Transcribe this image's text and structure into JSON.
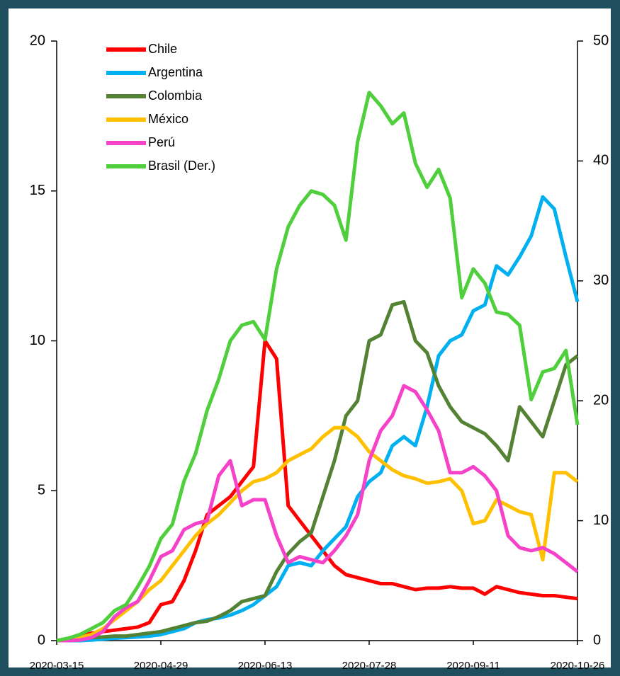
{
  "chart_data": {
    "type": "line",
    "x": [
      "2020-03-15",
      "2020-03-20",
      "2020-03-25",
      "2020-03-30",
      "2020-04-04",
      "2020-04-09",
      "2020-04-14",
      "2020-04-19",
      "2020-04-24",
      "2020-04-29",
      "2020-05-04",
      "2020-05-09",
      "2020-05-14",
      "2020-05-19",
      "2020-05-24",
      "2020-05-29",
      "2020-06-03",
      "2020-06-08",
      "2020-06-13",
      "2020-06-18",
      "2020-06-23",
      "2020-06-28",
      "2020-07-03",
      "2020-07-08",
      "2020-07-13",
      "2020-07-18",
      "2020-07-23",
      "2020-07-28",
      "2020-08-02",
      "2020-08-07",
      "2020-08-12",
      "2020-08-17",
      "2020-08-22",
      "2020-08-27",
      "2020-09-01",
      "2020-09-06",
      "2020-09-11",
      "2020-09-16",
      "2020-09-21",
      "2020-09-26",
      "2020-10-01",
      "2020-10-06",
      "2020-10-11",
      "2020-10-16",
      "2020-10-21",
      "2020-10-26"
    ],
    "xticks": [
      "2020-03-15",
      "2020-04-29",
      "2020-06-13",
      "2020-07-28",
      "2020-09-11",
      "2020-10-26"
    ],
    "ylim": [
      0,
      20
    ],
    "yticks": [
      0,
      5,
      10,
      15,
      20
    ],
    "y2lim": [
      0,
      50
    ],
    "y2ticks": [
      0,
      10,
      20,
      30,
      40,
      50
    ],
    "series": [
      {
        "name": "Chile",
        "color": "#ff0000",
        "values": [
          0,
          0.05,
          0.15,
          0.25,
          0.3,
          0.35,
          0.4,
          0.45,
          0.6,
          1.2,
          1.3,
          2,
          3,
          4.2,
          4.5,
          4.8,
          5.3,
          5.8,
          10,
          9.4,
          4.5,
          4,
          3.5,
          3,
          2.5,
          2.2,
          2.1,
          2,
          1.9,
          1.9,
          1.8,
          1.7,
          1.75,
          1.75,
          1.8,
          1.75,
          1.75,
          1.55,
          1.8,
          1.7,
          1.6,
          1.55,
          1.5,
          1.5,
          1.45,
          1.4
        ]
      },
      {
        "name": "Argentina",
        "color": "#00b0f0",
        "values": [
          0,
          0,
          0,
          0.02,
          0.05,
          0.08,
          0.1,
          0.12,
          0.15,
          0.2,
          0.3,
          0.4,
          0.6,
          0.7,
          0.75,
          0.85,
          1.0,
          1.2,
          1.5,
          1.8,
          2.5,
          2.6,
          2.5,
          3.0,
          3.4,
          3.8,
          4.8,
          5.3,
          5.6,
          6.5,
          6.8,
          6.5,
          7.8,
          9.5,
          10.0,
          10.2,
          11.0,
          11.2,
          12.5,
          12.2,
          12.8,
          13.5,
          14.8,
          14.4,
          12.8,
          11.3
        ]
      },
      {
        "name": "Colombia",
        "color": "#548235",
        "values": [
          0,
          0.02,
          0.05,
          0.1,
          0.12,
          0.15,
          0.15,
          0.2,
          0.25,
          0.3,
          0.4,
          0.5,
          0.6,
          0.65,
          0.8,
          1.0,
          1.3,
          1.4,
          1.5,
          2.3,
          2.9,
          3.3,
          3.6,
          4.8,
          6.0,
          7.5,
          8.0,
          10.0,
          10.2,
          11.2,
          11.3,
          10.0,
          9.6,
          8.5,
          7.8,
          7.3,
          7.1,
          6.9,
          6.5,
          6.0,
          7.8,
          7.3,
          6.8,
          8.0,
          9.2,
          9.5
        ]
      },
      {
        "name": "México",
        "color": "#ffc000",
        "values": [
          0,
          0.03,
          0.1,
          0.2,
          0.4,
          0.7,
          1.0,
          1.3,
          1.7,
          2.0,
          2.5,
          3.0,
          3.5,
          3.9,
          4.2,
          4.6,
          5.0,
          5.3,
          5.4,
          5.6,
          6.0,
          6.2,
          6.4,
          6.8,
          7.1,
          7.1,
          6.8,
          6.3,
          6.0,
          5.7,
          5.5,
          5.4,
          5.25,
          5.3,
          5.4,
          5.0,
          3.9,
          4.0,
          4.7,
          4.5,
          4.3,
          4.2,
          2.7,
          5.6,
          5.6,
          5.3
        ]
      },
      {
        "name": "Perú",
        "color": "#f542c8",
        "values": [
          0,
          0,
          0.02,
          0.1,
          0.3,
          0.8,
          1.1,
          1.3,
          2.0,
          2.8,
          3.0,
          3.7,
          3.9,
          4.0,
          5.5,
          6.0,
          4.5,
          4.7,
          4.7,
          3.5,
          2.6,
          2.8,
          2.7,
          2.6,
          3.0,
          3.5,
          4.2,
          6.0,
          7.0,
          7.5,
          8.5,
          8.3,
          7.7,
          7.0,
          5.6,
          5.6,
          5.8,
          5.5,
          5.0,
          3.5,
          3.1,
          3.0,
          3.1,
          2.9,
          2.6,
          2.3
        ]
      },
      {
        "name": "Brasil (Der.)",
        "color": "#4fcf3c",
        "axis": "y2",
        "values": [
          0,
          0.2,
          0.5,
          1.0,
          1.5,
          2.5,
          3.0,
          4.5,
          6.2,
          8.5,
          9.7,
          13.3,
          15.6,
          19.2,
          21.8,
          25,
          26.3,
          26.6,
          25.1,
          31,
          34.5,
          36.3,
          37.5,
          37.2,
          36.3,
          33.4,
          41.6,
          45.7,
          44.6,
          43.1,
          44,
          39.8,
          37.8,
          39.3,
          36.9,
          28.6,
          31,
          29.8,
          27.4,
          27.2,
          26.3,
          20.1,
          22.4,
          22.7,
          24.2,
          18.0
        ]
      }
    ]
  }
}
